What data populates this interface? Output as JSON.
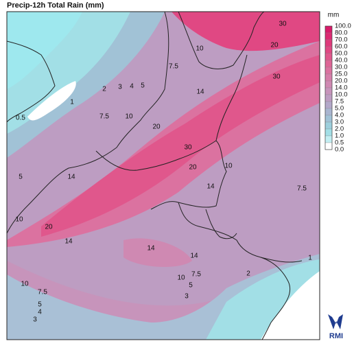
{
  "header": {
    "title": "Precip-12h Total Rain (mm)",
    "unit": "mm"
  },
  "legend": {
    "labels": [
      "100.0",
      "80.0",
      "70.0",
      "60.0",
      "50.0",
      "40.0",
      "30.0",
      "25.0",
      "20.0",
      "14.0",
      "10.0",
      "7.5",
      "5.0",
      "4.0",
      "3.0",
      "2.0",
      "1.0",
      "0.5",
      "0.0"
    ],
    "colors": [
      "#d81b6a",
      "#dc2a72",
      "#df3a7b",
      "#e04883",
      "#e0578c",
      "#de6596",
      "#db72a0",
      "#d67eaa",
      "#cf89b2",
      "#c794bb",
      "#bd9dc2",
      "#b3a8c9",
      "#a9b5d0",
      "#a1c2d6",
      "#9dcfdc",
      "#a2dfe6",
      "#c2eef2",
      "#ffffff"
    ]
  },
  "map": {
    "contour_labels": [
      "30",
      "20",
      "10",
      "30",
      "7.5",
      "14",
      "2",
      "3",
      "4",
      "5",
      "1",
      "7.5",
      "10",
      "20",
      "0.5",
      "30",
      "10",
      "20",
      "14",
      "14",
      "5",
      "7.5",
      "10",
      "20",
      "14",
      "14",
      "14",
      "1",
      "2",
      "10",
      "7.5",
      "5",
      "3",
      "10",
      "7.5",
      "5",
      "4",
      "3"
    ]
  },
  "logo": {
    "text": "RMI"
  }
}
